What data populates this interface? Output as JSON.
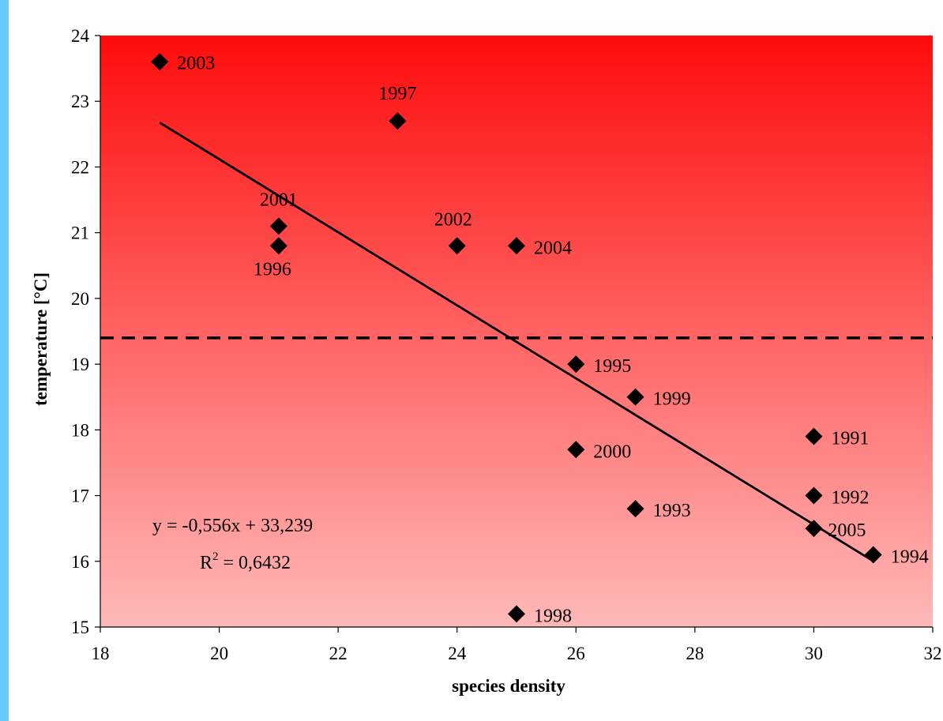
{
  "chart_data": {
    "type": "scatter",
    "xlabel": "species density",
    "ylabel": "temperature [°C]",
    "xlim": [
      18,
      32
    ],
    "ylim": [
      15,
      24
    ],
    "x_ticks": [
      18,
      20,
      22,
      24,
      26,
      28,
      30,
      32
    ],
    "y_ticks": [
      15,
      16,
      17,
      18,
      19,
      20,
      21,
      22,
      23,
      24
    ],
    "grid": false,
    "legend": "none",
    "background_gradient": [
      "#ff0c0c",
      "#ffb9b9"
    ],
    "marker_color": "#000000",
    "points": [
      {
        "x": 19,
        "y": 23.6,
        "label": "2003"
      },
      {
        "x": 23,
        "y": 22.7,
        "label": "1997"
      },
      {
        "x": 21,
        "y": 21.1,
        "label": "2001"
      },
      {
        "x": 21,
        "y": 20.8,
        "label": "1996"
      },
      {
        "x": 24,
        "y": 20.8,
        "label": "2002"
      },
      {
        "x": 25,
        "y": 20.8,
        "label": "2004"
      },
      {
        "x": 26,
        "y": 19.0,
        "label": "1995"
      },
      {
        "x": 27,
        "y": 18.5,
        "label": "1999"
      },
      {
        "x": 26,
        "y": 17.7,
        "label": "2000"
      },
      {
        "x": 30,
        "y": 17.9,
        "label": "1991"
      },
      {
        "x": 30,
        "y": 17.0,
        "label": "1992"
      },
      {
        "x": 27,
        "y": 16.8,
        "label": "1993"
      },
      {
        "x": 30,
        "y": 16.5,
        "label": "2005"
      },
      {
        "x": 31,
        "y": 16.1,
        "label": "1994"
      },
      {
        "x": 25,
        "y": 15.2,
        "label": "1998"
      }
    ],
    "trendline": {
      "slope": -0.556,
      "intercept": 33.239,
      "x_range": [
        19,
        31
      ],
      "equation_text": "y = -0,556x + 33,239",
      "r2_prefix": "R",
      "r2_sup": "2",
      "r2_value": " = 0,6432"
    },
    "reference_line": {
      "y": 19.4,
      "style": "dashed"
    }
  }
}
